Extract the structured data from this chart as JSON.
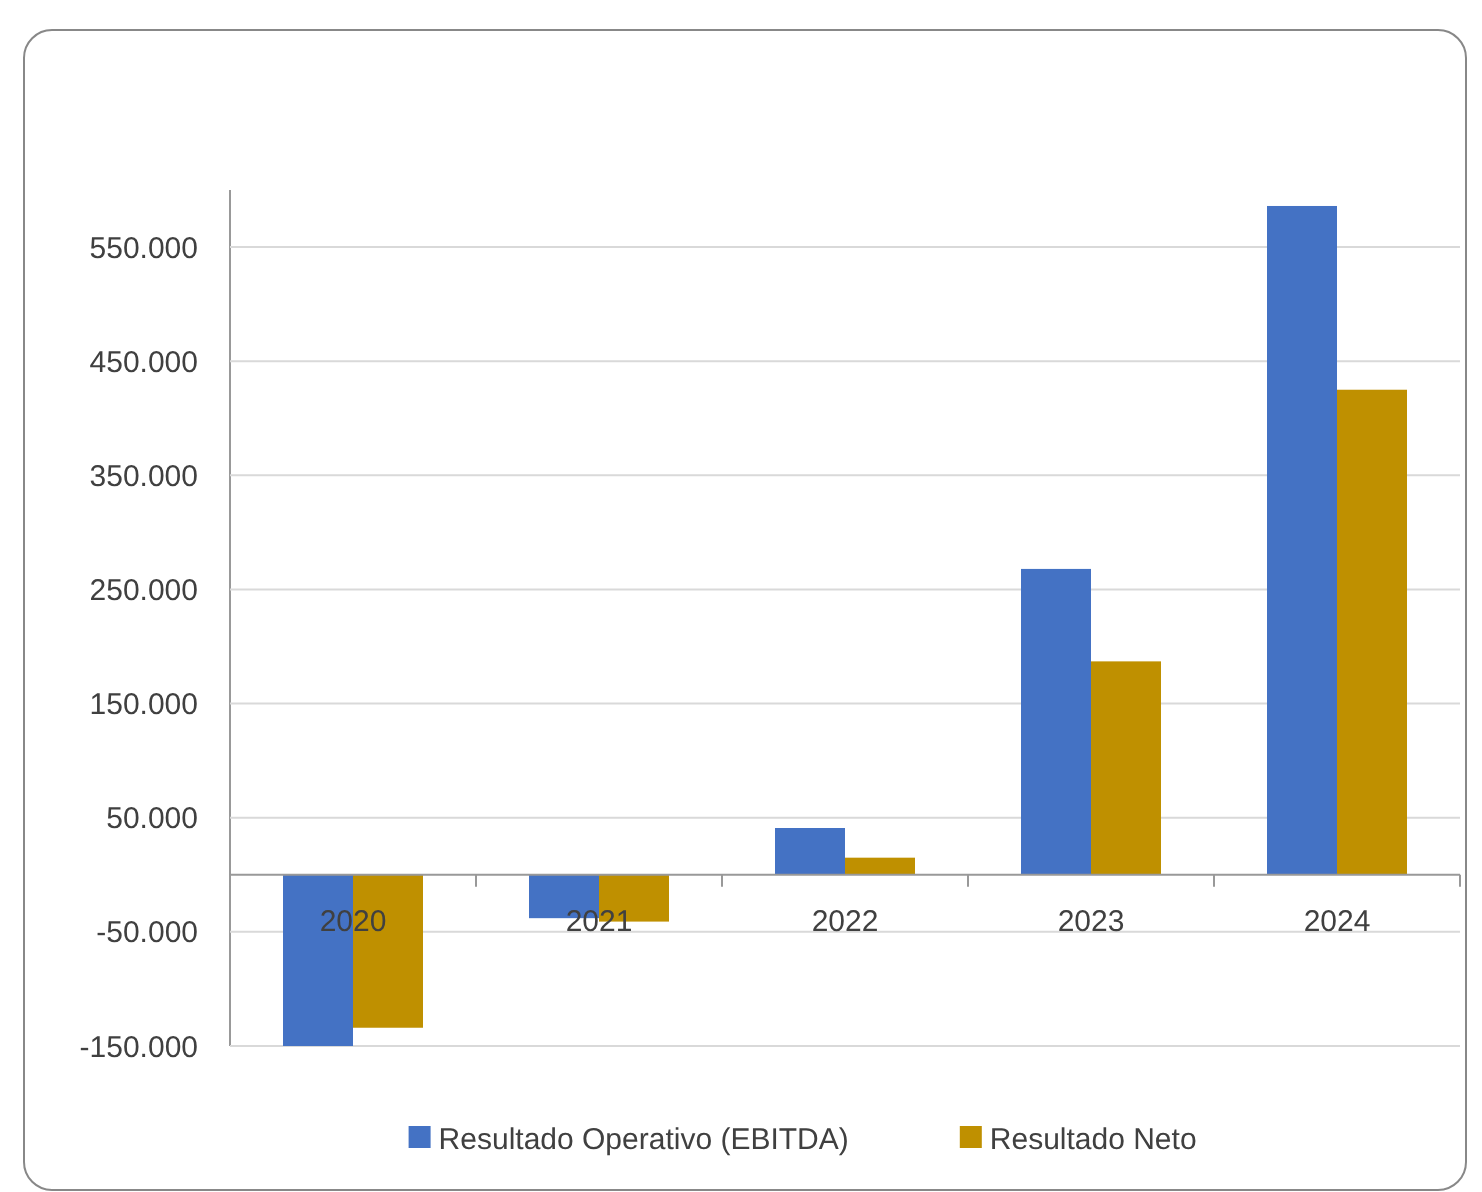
{
  "chart_data": {
    "type": "bar",
    "categories": [
      "2020",
      "2021",
      "2022",
      "2023",
      "2024"
    ],
    "series": [
      {
        "name": "Resultado Operativo (EBITDA)",
        "color": "#4472c4",
        "values": [
          -150000,
          -38000,
          41000,
          268000,
          586000
        ]
      },
      {
        "name": "Resultado Neto",
        "color": "#bf9000",
        "values": [
          -134000,
          -41000,
          15000,
          187000,
          425000
        ]
      }
    ],
    "ylim": [
      -150000,
      600000
    ],
    "yticks": [
      {
        "value": -150000,
        "label": "-150.000"
      },
      {
        "value": -50000,
        "label": "-50.000"
      },
      {
        "value": 50000,
        "label": "50.000"
      },
      {
        "value": 150000,
        "label": "150.000"
      },
      {
        "value": 250000,
        "label": "250.000"
      },
      {
        "value": 350000,
        "label": "350.000"
      },
      {
        "value": 450000,
        "label": "450.000"
      },
      {
        "value": 550000,
        "label": "550.000"
      }
    ],
    "grid": "y",
    "legend": "bottom"
  }
}
